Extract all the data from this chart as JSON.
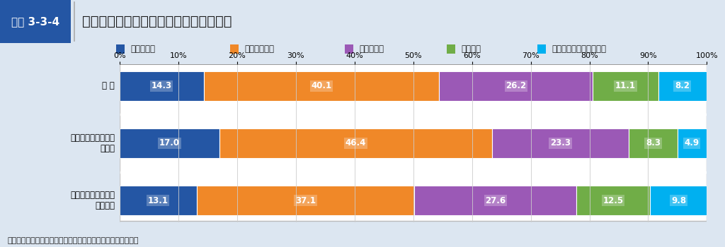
{
  "title": "社会参加活動の参加状況と孤独感の関係",
  "fig_label": "図表 3-3-4",
  "categories": [
    "全 体",
    "社会参加活動を行っ\nている",
    "社会参加活動を行っ\nていない"
  ],
  "series_labels": [
    "決してない",
    "ほとんどない",
    "たまにある",
    "時々ある",
    "しばしばある・常にある"
  ],
  "colors": [
    "#2456a4",
    "#f08828",
    "#9b59b6",
    "#70ad47",
    "#00b0f0"
  ],
  "data": [
    [
      14.3,
      40.1,
      26.2,
      11.1,
      8.2
    ],
    [
      17.0,
      46.4,
      23.3,
      8.3,
      4.9
    ],
    [
      13.1,
      37.1,
      27.6,
      12.5,
      9.8
    ]
  ],
  "source": "資料：厚生労働省「令和４年度少子高齢社会等調査検討事業」",
  "background_main": "#dce6f1",
  "background_header": "#ffffff",
  "header_left_color": "#2456a4",
  "legend_box_color": "#ffffff",
  "xtick_labels": [
    "0%",
    "10%",
    "20%",
    "30%",
    "40%",
    "50%",
    "60%",
    "70%",
    "80%",
    "90%",
    "100%"
  ],
  "xtick_vals": [
    0,
    10,
    20,
    30,
    40,
    50,
    60,
    70,
    80,
    90,
    100
  ]
}
